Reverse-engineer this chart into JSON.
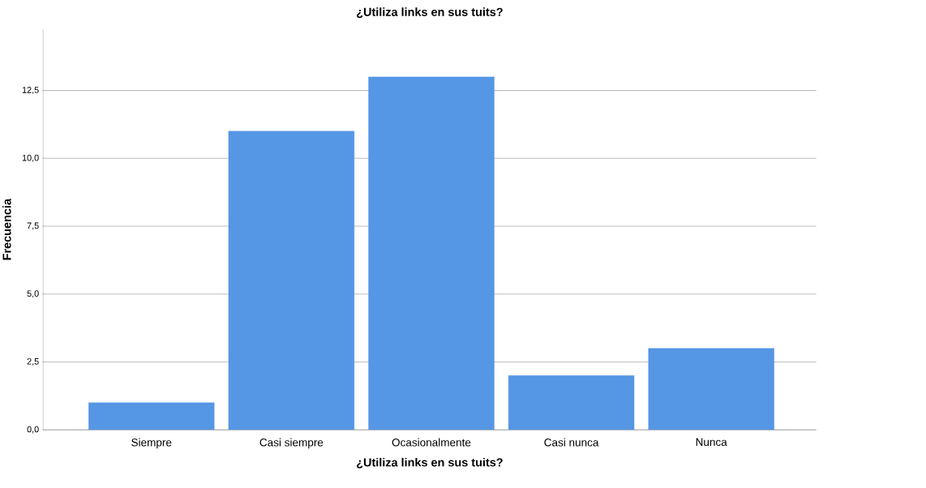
{
  "chart_data": {
    "type": "bar",
    "title": "¿Utiliza links en sus tuits?",
    "xlabel": "¿Utiliza links en sus tuits?",
    "ylabel": "Frecuencia",
    "categories": [
      "Siempre",
      "Casi siempre",
      "Ocasionalmente",
      "Casi nunca",
      "Nunca"
    ],
    "values": [
      1,
      11,
      13,
      2,
      3
    ],
    "color": "#5596e5",
    "ylim": [
      0,
      14.75
    ],
    "yticks": [
      {
        "value": 0,
        "label": "0,0"
      },
      {
        "value": 2.5,
        "label": "2,5"
      },
      {
        "value": 5,
        "label": "5,0"
      },
      {
        "value": 7.5,
        "label": "7,5"
      },
      {
        "value": 10,
        "label": "10,0"
      },
      {
        "value": 12.5,
        "label": "12,5"
      }
    ],
    "grid": "y"
  }
}
